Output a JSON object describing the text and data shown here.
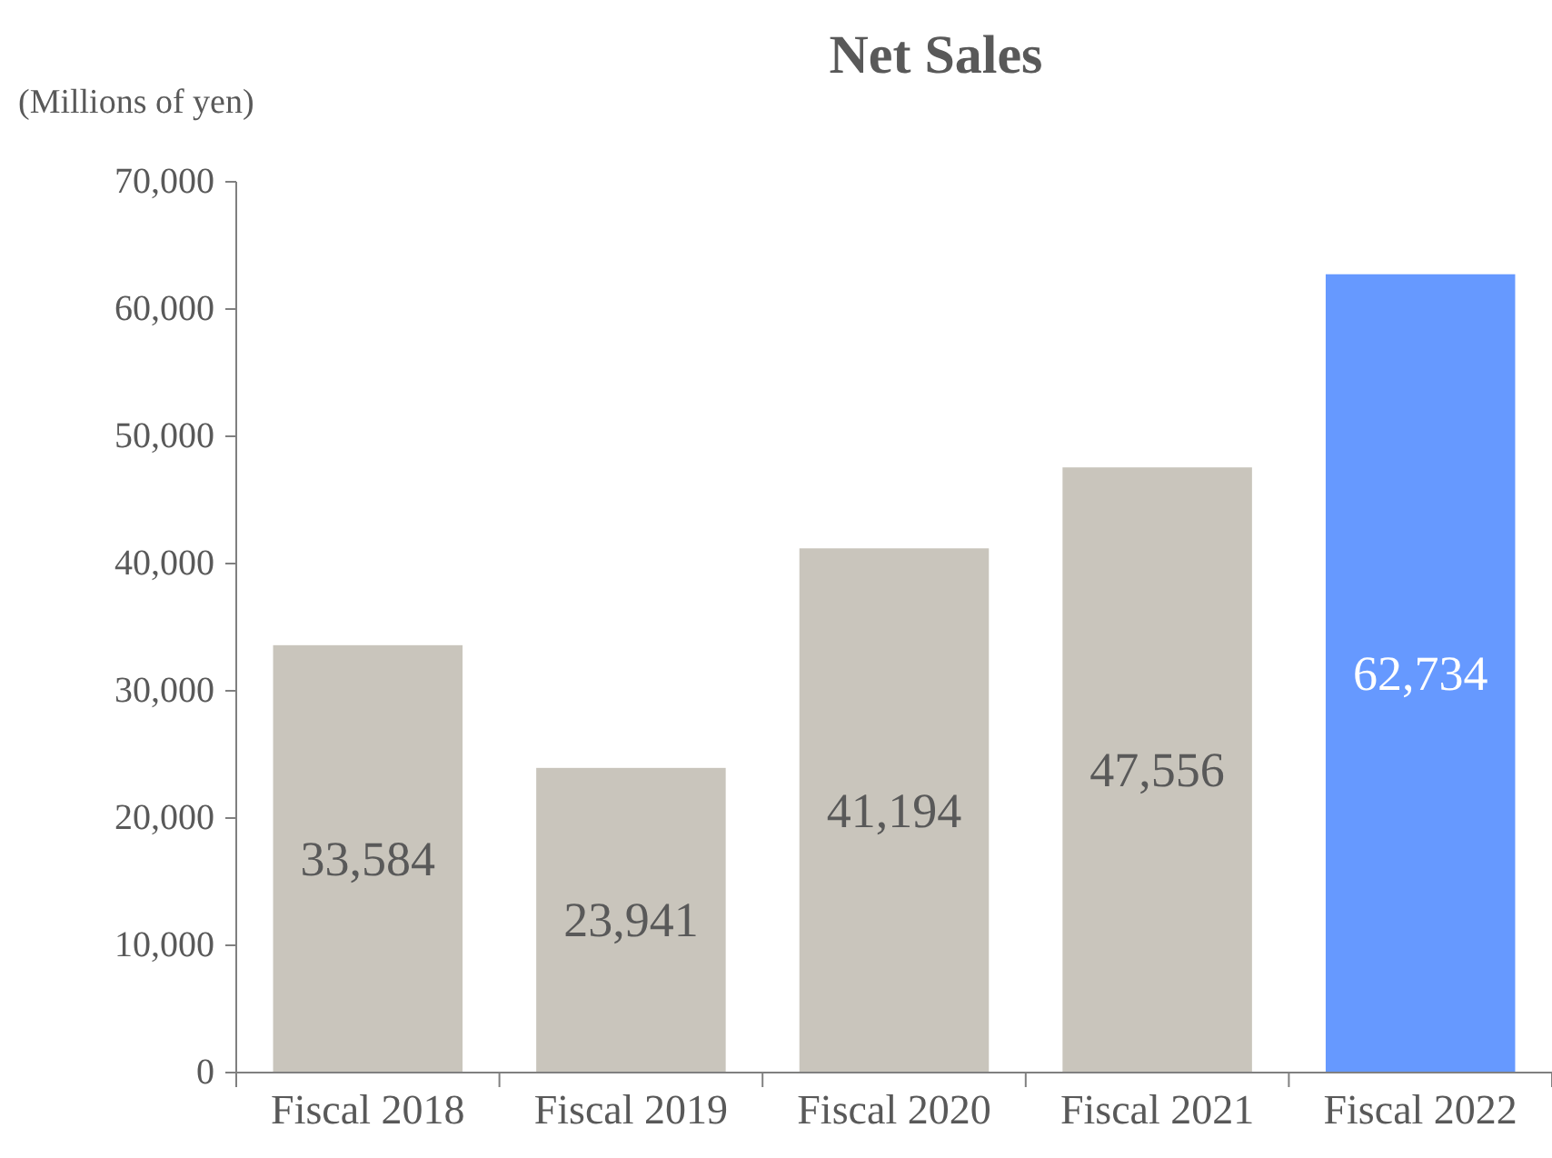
{
  "chart_data": {
    "type": "bar",
    "title": "Net Sales",
    "ylabel": "(Millions of yen)",
    "categories": [
      "Fiscal 2018",
      "Fiscal 2019",
      "Fiscal 2020",
      "Fiscal 2021",
      "Fiscal 2022"
    ],
    "values": [
      33584,
      23941,
      41194,
      47556,
      62734
    ],
    "colors": [
      "#c9c5bc",
      "#c9c5bc",
      "#c9c5bc",
      "#c9c5bc",
      "#6699ff"
    ],
    "ylim": [
      0,
      70000
    ],
    "yticks": [
      {
        "value": 0,
        "label": "0"
      },
      {
        "value": 10000,
        "label": "10,000"
      },
      {
        "value": 20000,
        "label": "20,000"
      },
      {
        "value": 30000,
        "label": "30,000"
      },
      {
        "value": 40000,
        "label": "40,000"
      },
      {
        "value": 50000,
        "label": "50,000"
      },
      {
        "value": 60000,
        "label": "60,000"
      },
      {
        "value": 70000,
        "label": "70,000"
      }
    ],
    "value_labels": [
      "33,584",
      "23,941",
      "41,194",
      "47,556",
      "62,734"
    ],
    "grid": false
  }
}
